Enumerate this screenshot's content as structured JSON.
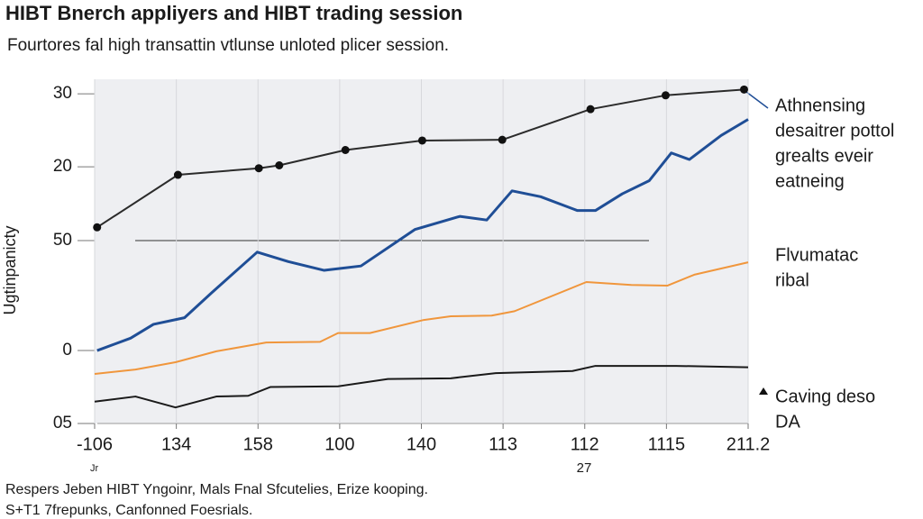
{
  "chart_data": {
    "type": "line",
    "title": "HIBT Bnerch appliyers and HIBT trading session",
    "subtitle": "Fourtores fal high transattin vtlunse unloted plicer session.",
    "y_label": "Ugtinpanicty",
    "categories": [
      "-106",
      "134",
      "158",
      "100",
      "140",
      "113",
      "112",
      "1115",
      "211.2"
    ],
    "x_note": "27",
    "corner_note": "Jr",
    "xlim": [
      0,
      8
    ],
    "ylim": [
      -15.2,
      32
    ],
    "yticks": [
      30,
      20
    ],
    "y_labels_extra": [
      "50",
      "0",
      "05"
    ],
    "grid": true,
    "series": [
      {
        "color": "#2b2b2b",
        "markers": true,
        "x": [
          0.03,
          1.02,
          2.01,
          2.26,
          3.07,
          4.01,
          4.99,
          6.07,
          6.99,
          7.95
        ],
        "values": [
          11.7,
          18.9,
          19.8,
          20.2,
          22.3,
          23.6,
          23.7,
          27.9,
          29.8,
          30.6
        ]
      },
      {
        "name": [
          "Athnensing",
          "desaitrer pottol",
          "grealts eveir",
          "eatneing"
        ],
        "color": "#1f4e96",
        "markers": false,
        "x": [
          0.03,
          0.44,
          0.72,
          1.1,
          1.43,
          1.99,
          2.37,
          2.81,
          3.26,
          3.92,
          4.47,
          4.8,
          5.11,
          5.46,
          5.91,
          6.13,
          6.46,
          6.79,
          7.06,
          7.28,
          7.67,
          8.0
        ],
        "values": [
          -5.2,
          -3.5,
          -1.6,
          -0.7,
          2.7,
          8.3,
          7.0,
          5.8,
          6.4,
          11.4,
          13.2,
          12.7,
          16.7,
          15.9,
          14.0,
          14.0,
          16.3,
          18.1,
          21.9,
          21.0,
          24.3,
          26.5
        ]
      },
      {
        "name": [
          "Flvumatac",
          "ribal"
        ],
        "color": "#f0963c",
        "markers": false,
        "x": [
          0,
          0.5,
          0.99,
          1.49,
          2.1,
          2.76,
          2.98,
          3.37,
          4.03,
          4.36,
          4.86,
          5.14,
          6.02,
          6.57,
          7.01,
          7.34,
          8.0
        ],
        "values": [
          -8.4,
          -7.8,
          -6.8,
          -5.3,
          -4.1,
          -4.0,
          -2.8,
          -2.8,
          -1.0,
          -0.5,
          -0.4,
          0.2,
          4.2,
          3.8,
          3.7,
          5.2,
          6.9
        ]
      },
      {
        "name": [
          "Caving deso",
          "DA"
        ],
        "color": "#1a1a1a",
        "markers": false,
        "x": [
          0,
          0.5,
          0.99,
          1.49,
          1.88,
          2.15,
          2.98,
          3.59,
          4.36,
          4.91,
          5.85,
          6.13,
          7.12,
          8.0
        ],
        "values": [
          -12.2,
          -11.5,
          -13.0,
          -11.5,
          -11.4,
          -10.2,
          -10.1,
          -9.1,
          -9.0,
          -8.3,
          -8.0,
          -7.3,
          -7.3,
          -7.5
        ]
      }
    ],
    "footer": [
      "Respers Jeben HIBT Yngoinr, Mals Fnal Sfcutelies, Erize kooping.",
      "S+T1 7frepunks, Canfonned Foesrials."
    ]
  }
}
